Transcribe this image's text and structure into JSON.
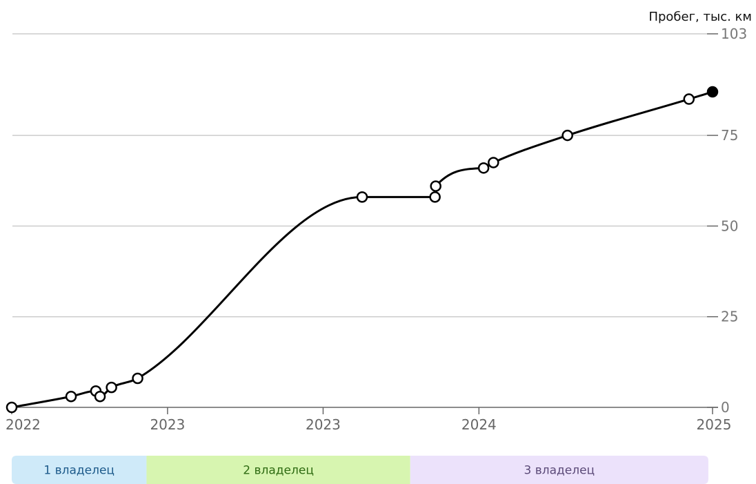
{
  "chart_data": {
    "type": "line",
    "ylabel": "Пробег, тыс. км",
    "y_ticks": [
      0,
      25,
      50,
      75,
      103
    ],
    "ylim": [
      0,
      103
    ],
    "xlim": [
      2022.0,
      2025.0
    ],
    "x_ticks": [
      {
        "value": 2022.0,
        "label": "2022"
      },
      {
        "value": 2022.667,
        "label": "2023"
      },
      {
        "value": 2023.333,
        "label": "2023"
      },
      {
        "value": 2024.0,
        "label": "2024"
      },
      {
        "value": 2025.0,
        "label": "2025"
      }
    ],
    "grid": "horizontal",
    "series": [
      {
        "points": [
          {
            "x": 2022.0,
            "y": 0
          },
          {
            "x": 2022.254,
            "y": 3
          },
          {
            "x": 2022.36,
            "y": 4.5
          },
          {
            "x": 2022.378,
            "y": 3
          },
          {
            "x": 2022.427,
            "y": 5.5
          },
          {
            "x": 2022.539,
            "y": 8
          },
          {
            "x": 2023.5,
            "y": 58
          },
          {
            "x": 2023.812,
            "y": 58
          },
          {
            "x": 2023.815,
            "y": 61
          },
          {
            "x": 2024.02,
            "y": 66
          },
          {
            "x": 2024.062,
            "y": 67.5
          },
          {
            "x": 2024.379,
            "y": 75
          },
          {
            "x": 2024.899,
            "y": 85
          },
          {
            "x": 2025.0,
            "y": 87
          }
        ],
        "last_point_filled": true
      }
    ]
  },
  "owners": [
    {
      "label": "1 владелец",
      "start": 2022.0,
      "end": 2022.577,
      "bg": "#cfeaf9",
      "text_color": "#1d5a8a"
    },
    {
      "label": "2 владелец",
      "start": 2022.577,
      "end": 2023.706,
      "bg": "#d7f5b0",
      "text_color": "#2e6b12"
    },
    {
      "label": "3 владелец",
      "start": 2023.706,
      "end": 2024.982,
      "bg": "#ece2fb",
      "text_color": "#5b4a78"
    }
  ],
  "colors": {
    "line": "#000000",
    "grid": "#cccccc",
    "axis": "#666666"
  }
}
